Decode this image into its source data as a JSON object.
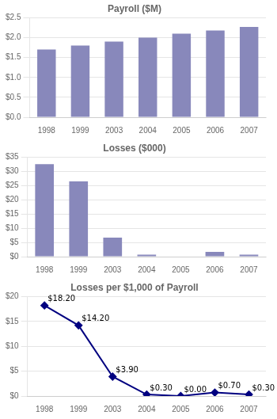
{
  "chart_data": [
    {
      "type": "bar",
      "title": "Payroll ($M)",
      "categories": [
        "1998",
        "1999",
        "2003",
        "2004",
        "2005",
        "2006",
        "2007"
      ],
      "values": [
        1.7,
        1.8,
        1.9,
        2.0,
        2.1,
        2.18,
        2.27
      ],
      "color": "#8888bb",
      "ylim": [
        0,
        2.5
      ],
      "yticks": [
        {
          "value": 0.0,
          "label": "$0.0"
        },
        {
          "value": 0.5,
          "label": "$0.5"
        },
        {
          "value": 1.0,
          "label": "$1.0"
        },
        {
          "value": 1.5,
          "label": "$1.5"
        },
        {
          "value": 2.0,
          "label": "$2.0"
        },
        {
          "value": 2.5,
          "label": "$2.5"
        }
      ],
      "grid": true
    },
    {
      "type": "bar",
      "title": "Losses ($000)",
      "categories": [
        "1998",
        "1999",
        "2003",
        "2004",
        "2005",
        "2006",
        "2007"
      ],
      "values": [
        32.5,
        26.5,
        6.7,
        0.7,
        0.0,
        1.7,
        0.7
      ],
      "color": "#8888bb",
      "ylim": [
        0,
        35
      ],
      "yticks": [
        {
          "value": 0,
          "label": "$0"
        },
        {
          "value": 5,
          "label": "$5"
        },
        {
          "value": 10,
          "label": "$10"
        },
        {
          "value": 15,
          "label": "$15"
        },
        {
          "value": 20,
          "label": "$20"
        },
        {
          "value": 25,
          "label": "$25"
        },
        {
          "value": 30,
          "label": "$30"
        },
        {
          "value": 35,
          "label": "$35"
        }
      ],
      "grid": true
    },
    {
      "type": "line",
      "title": "Losses per $1,000 of Payroll",
      "categories": [
        "1998",
        "1999",
        "2003",
        "2004",
        "2005",
        "2006",
        "2007"
      ],
      "values": [
        18.2,
        14.2,
        3.9,
        0.3,
        0.0,
        0.7,
        0.3
      ],
      "value_labels": [
        "$18.20",
        "$14.20",
        "$3.90",
        "$0.30",
        "$0.00",
        "$0.70",
        "$0.30"
      ],
      "data_labels": true,
      "color": "#000080",
      "marker": "diamond",
      "line_style": "solid",
      "ylim": [
        0,
        20
      ],
      "yticks": [
        {
          "value": 0,
          "label": "$0"
        },
        {
          "value": 5,
          "label": "$5"
        },
        {
          "value": 10,
          "label": "$10"
        },
        {
          "value": 15,
          "label": "$15"
        },
        {
          "value": 20,
          "label": "$20"
        }
      ],
      "grid": true
    }
  ]
}
